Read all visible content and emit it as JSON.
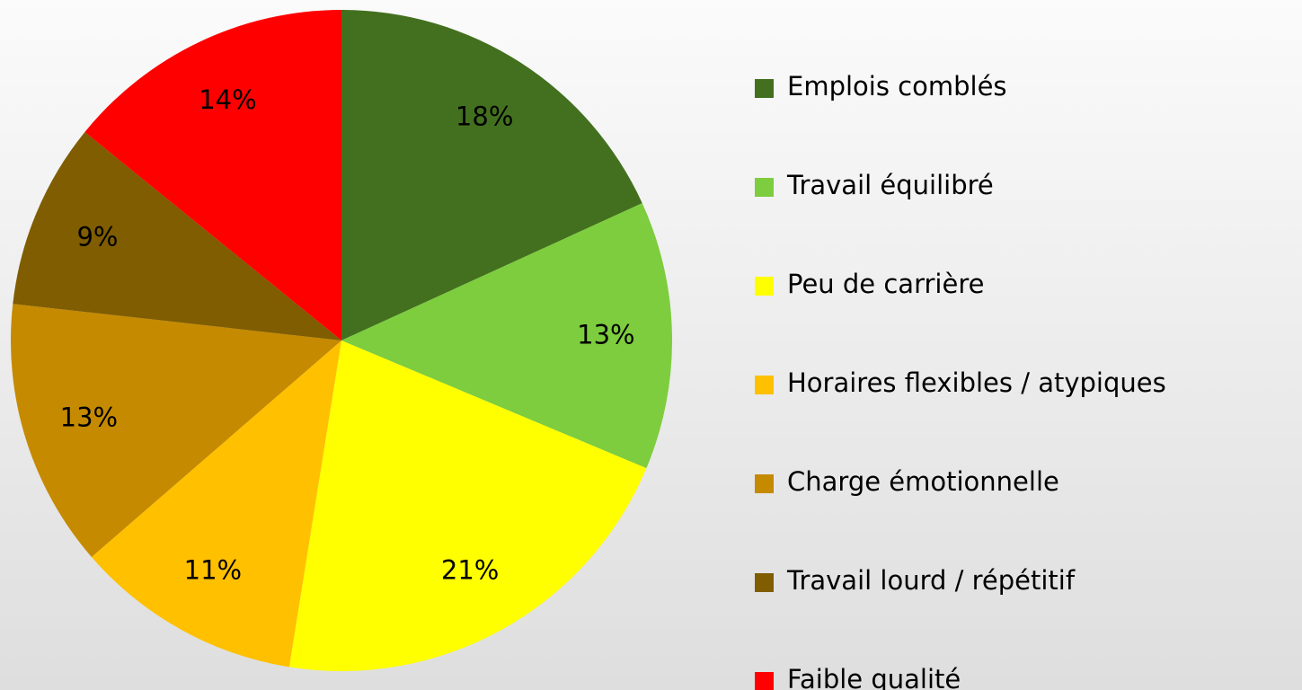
{
  "chart_data": {
    "type": "pie",
    "categories": [
      "Emplois comblés",
      "Travail équilibré",
      "Peu de carrière",
      "Horaires flexibles / atypiques",
      "Charge émotionnelle",
      "Travail lourd / répétitif",
      "Faible qualité"
    ],
    "values": [
      18,
      13,
      21,
      11,
      13,
      9,
      14
    ],
    "value_labels": [
      "18%",
      "13%",
      "21%",
      "11%",
      "13%",
      "9%",
      "14%"
    ],
    "colors": [
      "#43701f",
      "#7dcd3e",
      "#ffff00",
      "#ffc000",
      "#c58a00",
      "#7f5d00",
      "#ff0000"
    ],
    "legend": "right"
  }
}
